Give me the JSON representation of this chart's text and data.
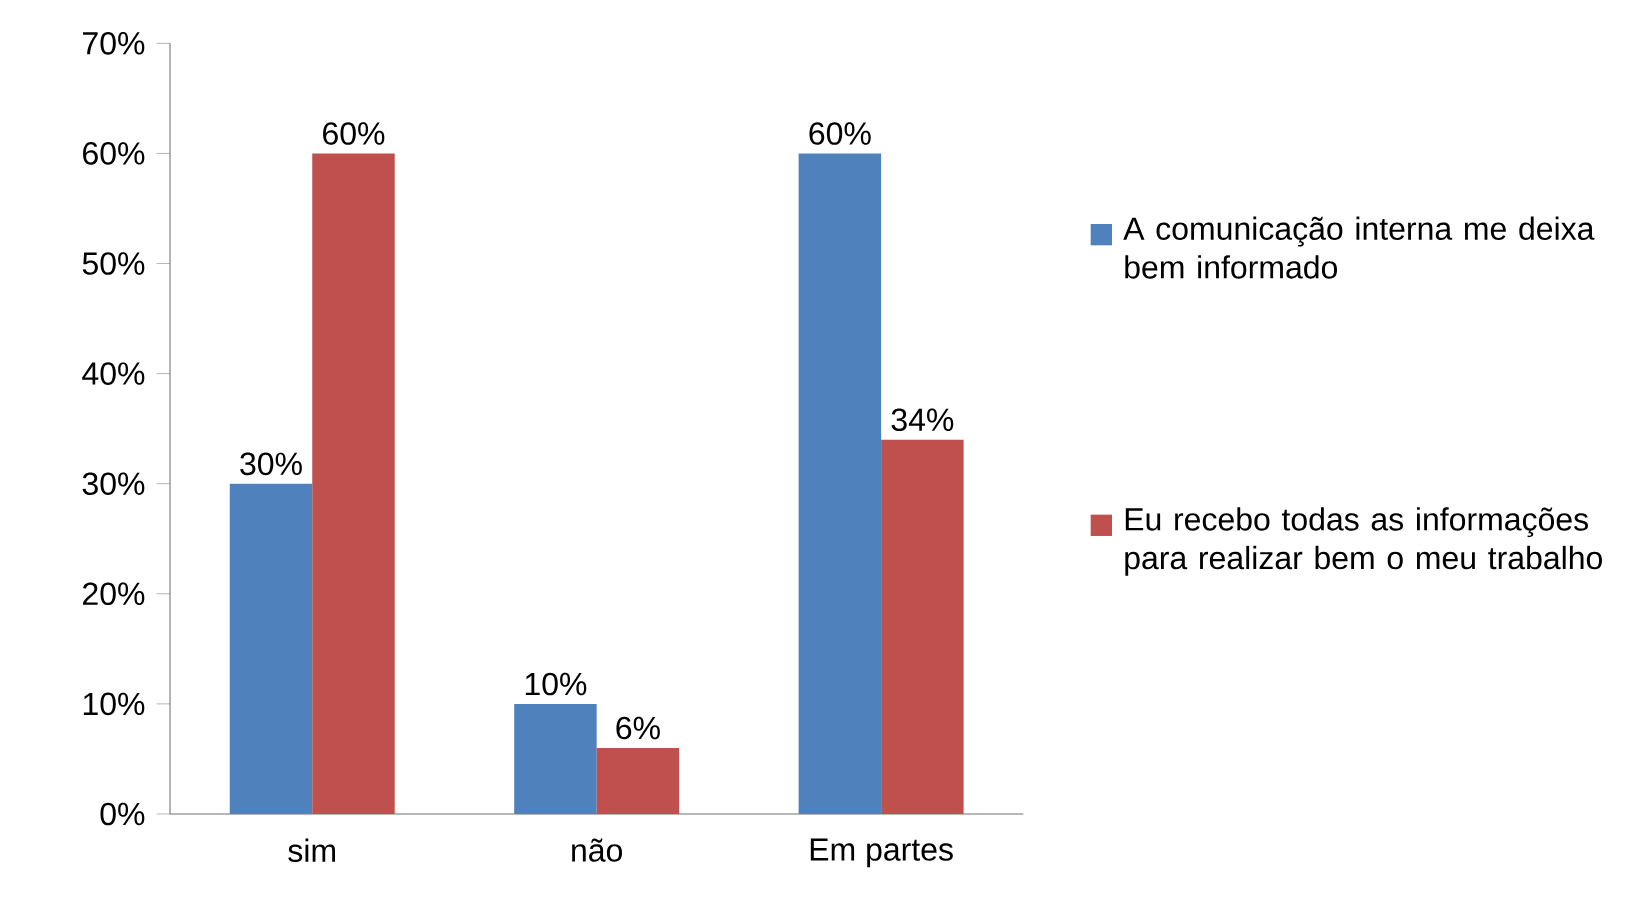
{
  "chart_data": {
    "type": "bar",
    "categories": [
      "sim",
      "não",
      "Em partes"
    ],
    "series": [
      {
        "name": "A comunicação interna me deixa bem informado",
        "color": "#4f81bd",
        "values": [
          30,
          10,
          60
        ],
        "value_labels": [
          "30%",
          "10%",
          "60%"
        ]
      },
      {
        "name": "Eu recebo todas as informações para realizar bem o meu trabalho",
        "color": "#c0504d",
        "values": [
          60,
          6,
          34
        ],
        "value_labels": [
          "60%",
          "6%",
          "34%"
        ]
      }
    ],
    "ylim": [
      0,
      70
    ],
    "yticks": [
      {
        "value": 0,
        "label": "0%"
      },
      {
        "value": 10,
        "label": "10%"
      },
      {
        "value": 20,
        "label": "20%"
      },
      {
        "value": 30,
        "label": "30%"
      },
      {
        "value": 40,
        "label": "40%"
      },
      {
        "value": 50,
        "label": "50%"
      },
      {
        "value": 60,
        "label": "60%"
      },
      {
        "value": 70,
        "label": "70%"
      }
    ],
    "grid": false,
    "legend": "right"
  }
}
